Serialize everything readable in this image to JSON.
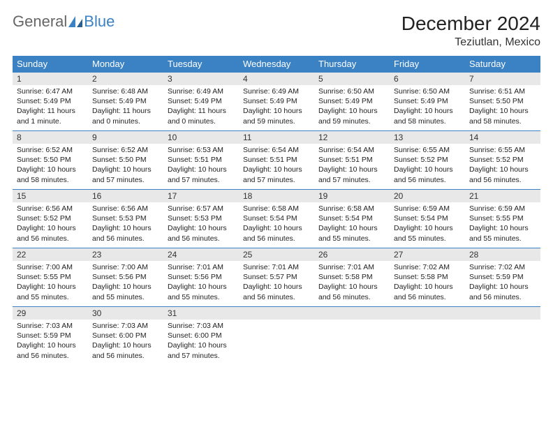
{
  "brand": {
    "part1": "General",
    "part2": "Blue"
  },
  "title": "December 2024",
  "location": "Teziutlan, Mexico",
  "colors": {
    "header_bg": "#3b82c4",
    "header_text": "#ffffff",
    "daynum_bg": "#e8e8e8",
    "border": "#3b82c4",
    "logo_blue": "#3b82c4",
    "logo_gray": "#666666"
  },
  "daysOfWeek": [
    "Sunday",
    "Monday",
    "Tuesday",
    "Wednesday",
    "Thursday",
    "Friday",
    "Saturday"
  ],
  "layout": {
    "firstDayColumn": 0,
    "daysInMonth": 31
  },
  "days": [
    {
      "n": 1,
      "sunrise": "6:47 AM",
      "sunset": "5:49 PM",
      "daylight": "11 hours and 1 minute."
    },
    {
      "n": 2,
      "sunrise": "6:48 AM",
      "sunset": "5:49 PM",
      "daylight": "11 hours and 0 minutes."
    },
    {
      "n": 3,
      "sunrise": "6:49 AM",
      "sunset": "5:49 PM",
      "daylight": "11 hours and 0 minutes."
    },
    {
      "n": 4,
      "sunrise": "6:49 AM",
      "sunset": "5:49 PM",
      "daylight": "10 hours and 59 minutes."
    },
    {
      "n": 5,
      "sunrise": "6:50 AM",
      "sunset": "5:49 PM",
      "daylight": "10 hours and 59 minutes."
    },
    {
      "n": 6,
      "sunrise": "6:50 AM",
      "sunset": "5:49 PM",
      "daylight": "10 hours and 58 minutes."
    },
    {
      "n": 7,
      "sunrise": "6:51 AM",
      "sunset": "5:50 PM",
      "daylight": "10 hours and 58 minutes."
    },
    {
      "n": 8,
      "sunrise": "6:52 AM",
      "sunset": "5:50 PM",
      "daylight": "10 hours and 58 minutes."
    },
    {
      "n": 9,
      "sunrise": "6:52 AM",
      "sunset": "5:50 PM",
      "daylight": "10 hours and 57 minutes."
    },
    {
      "n": 10,
      "sunrise": "6:53 AM",
      "sunset": "5:51 PM",
      "daylight": "10 hours and 57 minutes."
    },
    {
      "n": 11,
      "sunrise": "6:54 AM",
      "sunset": "5:51 PM",
      "daylight": "10 hours and 57 minutes."
    },
    {
      "n": 12,
      "sunrise": "6:54 AM",
      "sunset": "5:51 PM",
      "daylight": "10 hours and 57 minutes."
    },
    {
      "n": 13,
      "sunrise": "6:55 AM",
      "sunset": "5:52 PM",
      "daylight": "10 hours and 56 minutes."
    },
    {
      "n": 14,
      "sunrise": "6:55 AM",
      "sunset": "5:52 PM",
      "daylight": "10 hours and 56 minutes."
    },
    {
      "n": 15,
      "sunrise": "6:56 AM",
      "sunset": "5:52 PM",
      "daylight": "10 hours and 56 minutes."
    },
    {
      "n": 16,
      "sunrise": "6:56 AM",
      "sunset": "5:53 PM",
      "daylight": "10 hours and 56 minutes."
    },
    {
      "n": 17,
      "sunrise": "6:57 AM",
      "sunset": "5:53 PM",
      "daylight": "10 hours and 56 minutes."
    },
    {
      "n": 18,
      "sunrise": "6:58 AM",
      "sunset": "5:54 PM",
      "daylight": "10 hours and 56 minutes."
    },
    {
      "n": 19,
      "sunrise": "6:58 AM",
      "sunset": "5:54 PM",
      "daylight": "10 hours and 55 minutes."
    },
    {
      "n": 20,
      "sunrise": "6:59 AM",
      "sunset": "5:54 PM",
      "daylight": "10 hours and 55 minutes."
    },
    {
      "n": 21,
      "sunrise": "6:59 AM",
      "sunset": "5:55 PM",
      "daylight": "10 hours and 55 minutes."
    },
    {
      "n": 22,
      "sunrise": "7:00 AM",
      "sunset": "5:55 PM",
      "daylight": "10 hours and 55 minutes."
    },
    {
      "n": 23,
      "sunrise": "7:00 AM",
      "sunset": "5:56 PM",
      "daylight": "10 hours and 55 minutes."
    },
    {
      "n": 24,
      "sunrise": "7:01 AM",
      "sunset": "5:56 PM",
      "daylight": "10 hours and 55 minutes."
    },
    {
      "n": 25,
      "sunrise": "7:01 AM",
      "sunset": "5:57 PM",
      "daylight": "10 hours and 56 minutes."
    },
    {
      "n": 26,
      "sunrise": "7:01 AM",
      "sunset": "5:58 PM",
      "daylight": "10 hours and 56 minutes."
    },
    {
      "n": 27,
      "sunrise": "7:02 AM",
      "sunset": "5:58 PM",
      "daylight": "10 hours and 56 minutes."
    },
    {
      "n": 28,
      "sunrise": "7:02 AM",
      "sunset": "5:59 PM",
      "daylight": "10 hours and 56 minutes."
    },
    {
      "n": 29,
      "sunrise": "7:03 AM",
      "sunset": "5:59 PM",
      "daylight": "10 hours and 56 minutes."
    },
    {
      "n": 30,
      "sunrise": "7:03 AM",
      "sunset": "6:00 PM",
      "daylight": "10 hours and 56 minutes."
    },
    {
      "n": 31,
      "sunrise": "7:03 AM",
      "sunset": "6:00 PM",
      "daylight": "10 hours and 57 minutes."
    }
  ],
  "labels": {
    "sunrise": "Sunrise:",
    "sunset": "Sunset:",
    "daylight": "Daylight:"
  }
}
